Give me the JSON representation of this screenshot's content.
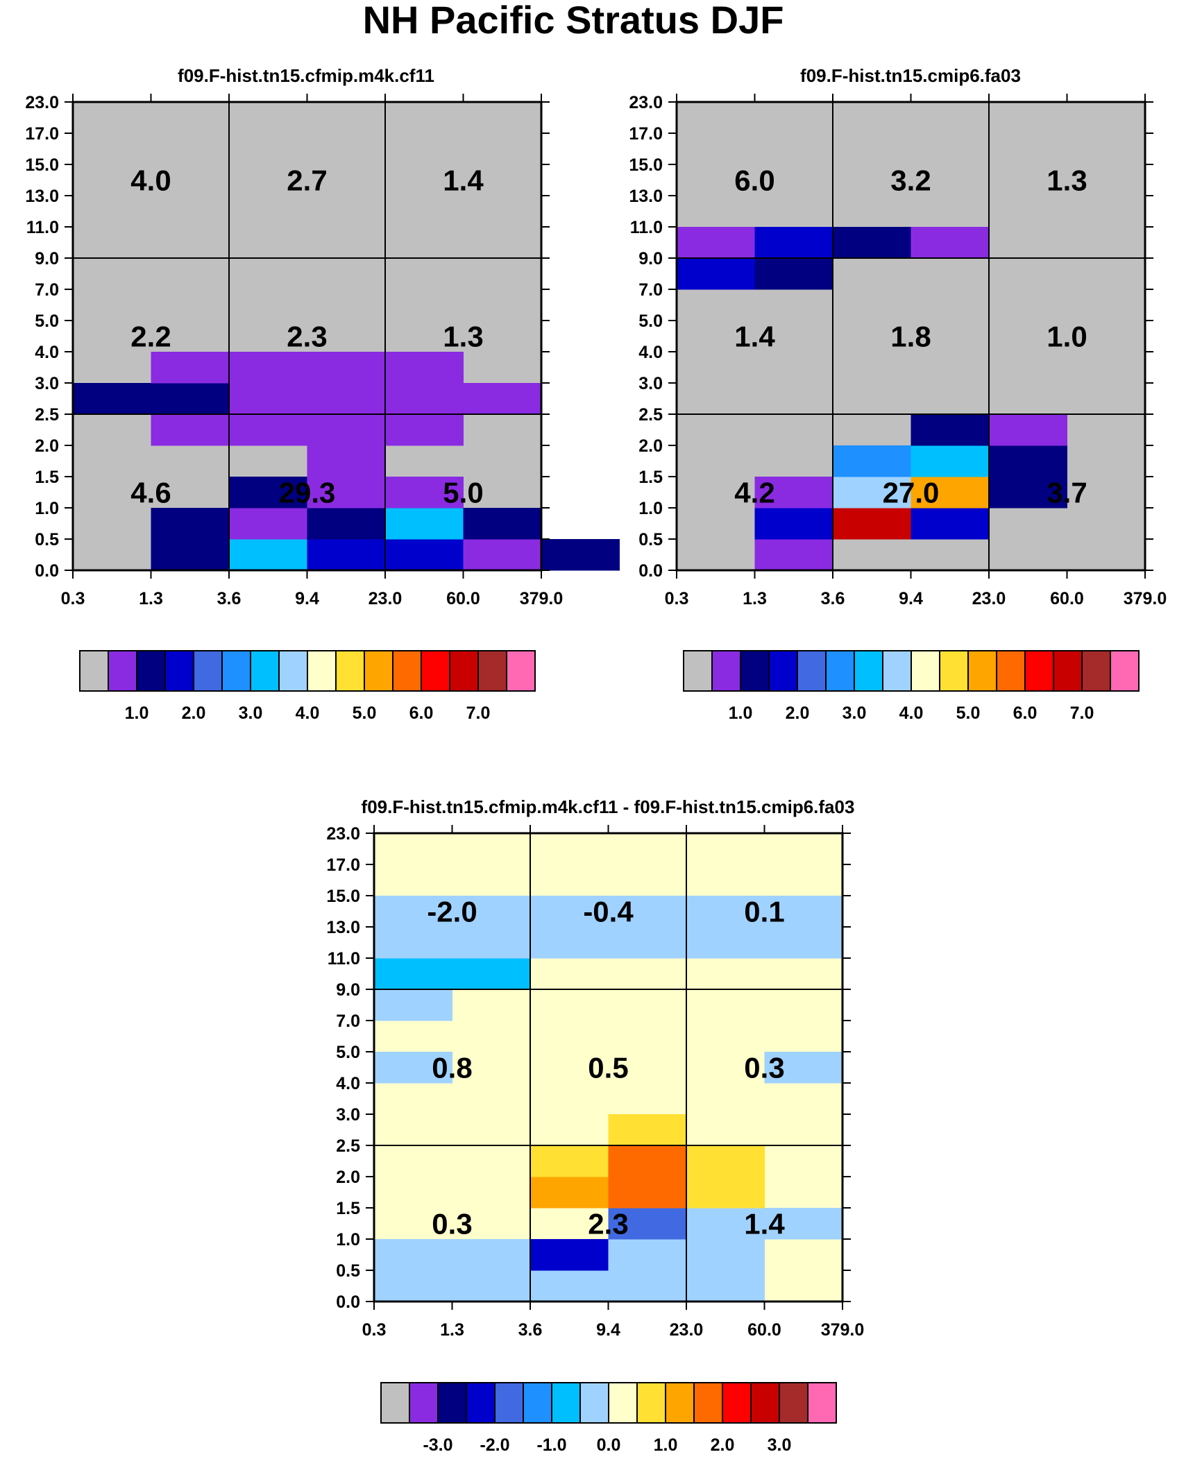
{
  "figure_title": "NH Pacific Stratus DJF",
  "x_ticks": [
    "0.3",
    "1.3",
    "3.6",
    "9.4",
    "23.0",
    "60.0",
    "379.0"
  ],
  "y_ticks": [
    "0.0",
    "0.5",
    "1.0",
    "1.5",
    "2.0",
    "2.5",
    "3.0",
    "4.0",
    "5.0",
    "7.0",
    "9.0",
    "11.0",
    "13.0",
    "15.0",
    "17.0",
    "23.0"
  ],
  "palette": [
    "#c0c0c0",
    "#8a2be2",
    "#000080",
    "#0000cd",
    "#4169e1",
    "#1e90ff",
    "#00bfff",
    "#a0d2ff",
    "#ffffcc",
    "#ffe033",
    "#ffa500",
    "#ff6a00",
    "#ff0000",
    "#c80000",
    "#a52a2a",
    "#ff69b4"
  ],
  "colorbar_abs_labels": [
    "1.0",
    "2.0",
    "3.0",
    "4.0",
    "5.0",
    "6.0",
    "7.0"
  ],
  "colorbar_diff_labels": [
    "-3.0",
    "-2.0",
    "-1.0",
    "0.0",
    "1.0",
    "2.0",
    "3.0"
  ],
  "chart_data": [
    {
      "type": "heatmap",
      "title": "f09.F-hist.tn15.cfmip.m4k.cf11",
      "xlabel": "",
      "ylabel": "",
      "grid_cols": 6,
      "grid_rows": 15,
      "background_color_index": 0,
      "cells": [
        [
          1,
          0,
          2
        ],
        [
          2,
          0,
          6
        ],
        [
          3,
          0,
          3
        ],
        [
          4,
          0,
          3
        ],
        [
          5,
          0,
          1
        ],
        [
          6,
          0,
          2
        ],
        [
          1,
          1,
          2
        ],
        [
          2,
          1,
          1
        ],
        [
          3,
          1,
          2
        ],
        [
          4,
          1,
          6
        ],
        [
          4,
          1,
          6
        ],
        [
          5,
          1,
          2
        ],
        [
          2,
          2,
          2
        ],
        [
          3,
          2,
          1
        ],
        [
          4,
          2,
          1
        ],
        [
          3,
          3,
          1
        ],
        [
          1,
          4,
          1
        ],
        [
          2,
          4,
          1
        ],
        [
          3,
          4,
          1
        ],
        [
          4,
          4,
          1
        ],
        [
          0,
          5,
          2
        ],
        [
          1,
          5,
          2
        ],
        [
          2,
          5,
          1
        ],
        [
          3,
          5,
          1
        ],
        [
          4,
          5,
          1
        ],
        [
          5,
          5,
          1
        ],
        [
          1,
          6,
          1
        ],
        [
          2,
          6,
          1
        ],
        [
          3,
          6,
          1
        ],
        [
          4,
          6,
          1
        ]
      ],
      "block_values": [
        [
          "4.0",
          "2.7",
          "1.4"
        ],
        [
          "2.2",
          "2.3",
          "1.3"
        ],
        [
          "4.6",
          "29.3",
          "5.0"
        ]
      ]
    },
    {
      "type": "heatmap",
      "title": "f09.F-hist.tn15.cmip6.fa03",
      "xlabel": "",
      "ylabel": "",
      "grid_cols": 6,
      "grid_rows": 15,
      "background_color_index": 0,
      "cells": [
        [
          1,
          0,
          1
        ],
        [
          1,
          1,
          3
        ],
        [
          2,
          1,
          13
        ],
        [
          3,
          1,
          3
        ],
        [
          1,
          2,
          1
        ],
        [
          2,
          2,
          7
        ],
        [
          3,
          2,
          10
        ],
        [
          4,
          2,
          2
        ],
        [
          2,
          3,
          5
        ],
        [
          3,
          3,
          6
        ],
        [
          4,
          3,
          2
        ],
        [
          3,
          4,
          2
        ],
        [
          4,
          4,
          1
        ],
        [
          0,
          9,
          3
        ],
        [
          1,
          9,
          2
        ],
        [
          0,
          10,
          1
        ],
        [
          1,
          10,
          3
        ],
        [
          2,
          10,
          2
        ],
        [
          3,
          10,
          1
        ]
      ],
      "block_values": [
        [
          "6.0",
          "3.2",
          "1.3"
        ],
        [
          "1.4",
          "1.8",
          "1.0"
        ],
        [
          "4.2",
          "27.0",
          "3.7"
        ]
      ]
    },
    {
      "type": "heatmap",
      "title": "f09.F-hist.tn15.cfmip.m4k.cf11 - f09.F-hist.tn15.cmip6.fa03",
      "xlabel": "",
      "ylabel": "",
      "grid_cols": 6,
      "grid_rows": 15,
      "background_color_index": 8,
      "cells": [
        [
          0,
          0,
          7
        ],
        [
          1,
          0,
          7
        ],
        [
          2,
          0,
          7
        ],
        [
          3,
          0,
          7
        ],
        [
          4,
          0,
          7
        ],
        [
          0,
          1,
          7
        ],
        [
          1,
          1,
          7
        ],
        [
          2,
          1,
          3
        ],
        [
          3,
          1,
          7
        ],
        [
          4,
          1,
          7
        ],
        [
          3,
          2,
          4
        ],
        [
          4,
          2,
          7
        ],
        [
          5,
          2,
          7
        ],
        [
          2,
          3,
          10
        ],
        [
          3,
          3,
          11
        ],
        [
          4,
          3,
          9
        ],
        [
          2,
          4,
          9
        ],
        [
          3,
          4,
          11
        ],
        [
          4,
          4,
          9
        ],
        [
          3,
          5,
          9
        ],
        [
          0,
          7,
          7
        ],
        [
          5,
          7,
          7
        ],
        [
          0,
          9,
          7
        ],
        [
          0,
          10,
          6
        ],
        [
          1,
          10,
          6
        ],
        [
          0,
          11,
          7
        ],
        [
          1,
          11,
          7
        ],
        [
          2,
          11,
          7
        ],
        [
          3,
          11,
          7
        ],
        [
          4,
          11,
          7
        ],
        [
          5,
          11,
          7
        ],
        [
          0,
          12,
          7
        ],
        [
          1,
          12,
          7
        ],
        [
          2,
          12,
          7
        ],
        [
          3,
          12,
          7
        ],
        [
          4,
          12,
          7
        ],
        [
          5,
          12,
          7
        ]
      ],
      "block_values": [
        [
          "-2.0",
          "-0.4",
          "0.1"
        ],
        [
          "0.8",
          "0.5",
          "0.3"
        ],
        [
          "0.3",
          "2.3",
          "1.4"
        ]
      ]
    }
  ]
}
